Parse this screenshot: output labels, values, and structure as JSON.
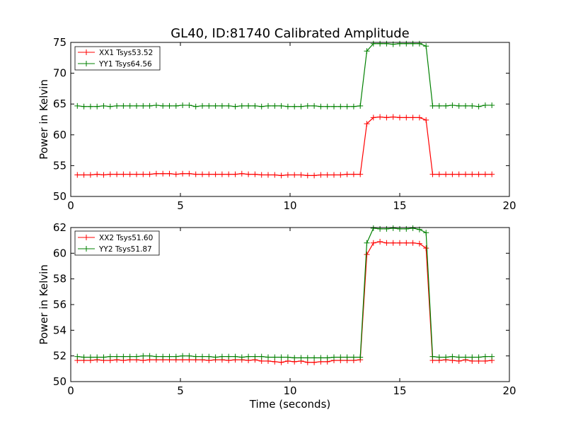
{
  "chart_data": [
    {
      "type": "line",
      "title": "GL40, ID:81740 Calibrated Amplitude",
      "xlabel": "",
      "ylabel": "Power in Kelvin",
      "xlim": [
        0,
        20
      ],
      "ylim": [
        50,
        75
      ],
      "xticks": [
        "0",
        "5",
        "10",
        "15",
        "20"
      ],
      "yticks": [
        "50",
        "55",
        "60",
        "65",
        "70",
        "75"
      ],
      "legend_position": "top-left",
      "grid": false,
      "x": [
        0.3,
        0.6,
        0.9,
        1.2,
        1.5,
        1.8,
        2.1,
        2.4,
        2.7,
        3.0,
        3.3,
        3.6,
        3.9,
        4.2,
        4.5,
        4.8,
        5.1,
        5.4,
        5.7,
        6.0,
        6.3,
        6.6,
        6.9,
        7.2,
        7.5,
        7.8,
        8.1,
        8.4,
        8.7,
        9.0,
        9.3,
        9.6,
        9.9,
        10.2,
        10.5,
        10.8,
        11.1,
        11.4,
        11.7,
        12.0,
        12.3,
        12.6,
        12.9,
        13.2,
        13.5,
        13.8,
        14.1,
        14.4,
        14.7,
        15.0,
        15.3,
        15.6,
        15.9,
        16.2,
        16.5,
        16.8,
        17.1,
        17.4,
        17.7,
        18.0,
        18.3,
        18.6,
        18.9,
        19.2
      ],
      "series": [
        {
          "name": "XX1 Tsys53.52",
          "color": "#ff0000",
          "values": [
            53.5,
            53.5,
            53.5,
            53.6,
            53.5,
            53.6,
            53.6,
            53.6,
            53.6,
            53.6,
            53.6,
            53.6,
            53.7,
            53.7,
            53.7,
            53.6,
            53.7,
            53.7,
            53.6,
            53.6,
            53.6,
            53.6,
            53.6,
            53.6,
            53.6,
            53.7,
            53.6,
            53.6,
            53.5,
            53.5,
            53.5,
            53.4,
            53.5,
            53.5,
            53.5,
            53.4,
            53.4,
            53.5,
            53.5,
            53.5,
            53.5,
            53.6,
            53.6,
            53.6,
            61.8,
            62.8,
            62.9,
            62.8,
            62.9,
            62.8,
            62.8,
            62.8,
            62.8,
            62.4,
            53.6,
            53.6,
            53.6,
            53.6,
            53.6,
            53.6,
            53.6,
            53.6,
            53.6,
            53.6
          ]
        },
        {
          "name": "YY1 Tsys64.56",
          "color": "#008000",
          "values": [
            64.7,
            64.6,
            64.6,
            64.6,
            64.7,
            64.6,
            64.7,
            64.7,
            64.7,
            64.7,
            64.7,
            64.7,
            64.8,
            64.7,
            64.7,
            64.7,
            64.8,
            64.8,
            64.6,
            64.7,
            64.7,
            64.7,
            64.7,
            64.7,
            64.6,
            64.7,
            64.7,
            64.7,
            64.6,
            64.7,
            64.7,
            64.7,
            64.6,
            64.6,
            64.6,
            64.7,
            64.7,
            64.6,
            64.6,
            64.6,
            64.6,
            64.6,
            64.6,
            64.7,
            73.6,
            74.8,
            74.8,
            74.8,
            74.7,
            74.8,
            74.8,
            74.8,
            74.8,
            74.4,
            64.7,
            64.7,
            64.7,
            64.8,
            64.7,
            64.7,
            64.7,
            64.6,
            64.8,
            64.8
          ]
        }
      ]
    },
    {
      "type": "line",
      "title": "",
      "xlabel": "Time (seconds)",
      "ylabel": "Power in Kelvin",
      "xlim": [
        0,
        20
      ],
      "ylim": [
        50,
        62
      ],
      "xticks": [
        "0",
        "5",
        "10",
        "15",
        "20"
      ],
      "yticks": [
        "50",
        "52",
        "54",
        "56",
        "58",
        "60",
        "62"
      ],
      "legend_position": "top-left",
      "grid": false,
      "x": [
        0.3,
        0.6,
        0.9,
        1.2,
        1.5,
        1.8,
        2.1,
        2.4,
        2.7,
        3.0,
        3.3,
        3.6,
        3.9,
        4.2,
        4.5,
        4.8,
        5.1,
        5.4,
        5.7,
        6.0,
        6.3,
        6.6,
        6.9,
        7.2,
        7.5,
        7.8,
        8.1,
        8.4,
        8.7,
        9.0,
        9.3,
        9.6,
        9.9,
        10.2,
        10.5,
        10.8,
        11.1,
        11.4,
        11.7,
        12.0,
        12.3,
        12.6,
        12.9,
        13.2,
        13.5,
        13.8,
        14.1,
        14.4,
        14.7,
        15.0,
        15.3,
        15.6,
        15.9,
        16.2,
        16.5,
        16.8,
        17.1,
        17.4,
        17.7,
        18.0,
        18.3,
        18.6,
        18.9,
        19.2
      ],
      "series": [
        {
          "name": "XX2 Tsys51.60",
          "color": "#ff0000",
          "values": [
            51.65,
            51.65,
            51.65,
            51.7,
            51.65,
            51.65,
            51.7,
            51.65,
            51.7,
            51.7,
            51.65,
            51.7,
            51.7,
            51.7,
            51.7,
            51.7,
            51.7,
            51.7,
            51.7,
            51.7,
            51.65,
            51.7,
            51.7,
            51.65,
            51.7,
            51.7,
            51.65,
            51.7,
            51.6,
            51.6,
            51.55,
            51.5,
            51.6,
            51.55,
            51.6,
            51.5,
            51.5,
            51.55,
            51.55,
            51.65,
            51.65,
            51.65,
            51.65,
            51.7,
            59.9,
            60.8,
            60.9,
            60.8,
            60.8,
            60.8,
            60.8,
            60.8,
            60.75,
            60.4,
            51.65,
            51.65,
            51.7,
            51.65,
            51.6,
            51.7,
            51.6,
            51.6,
            51.6,
            51.65
          ]
        },
        {
          "name": "YY2 Tsys51.87",
          "color": "#008000",
          "values": [
            51.95,
            51.9,
            51.9,
            51.9,
            51.9,
            51.95,
            51.95,
            51.95,
            51.95,
            51.95,
            52.0,
            52.0,
            51.95,
            51.95,
            51.95,
            51.95,
            52.0,
            52.0,
            51.95,
            51.95,
            51.95,
            51.9,
            51.95,
            51.95,
            51.95,
            51.9,
            51.95,
            51.95,
            51.95,
            51.9,
            51.9,
            51.9,
            51.9,
            51.85,
            51.85,
            51.85,
            51.85,
            51.85,
            51.85,
            51.9,
            51.9,
            51.9,
            51.9,
            51.9,
            60.8,
            61.95,
            61.9,
            61.9,
            61.95,
            61.9,
            61.9,
            61.95,
            61.85,
            61.6,
            51.95,
            51.9,
            51.9,
            51.95,
            51.9,
            51.9,
            51.9,
            51.9,
            51.95,
            51.95
          ]
        }
      ]
    }
  ]
}
